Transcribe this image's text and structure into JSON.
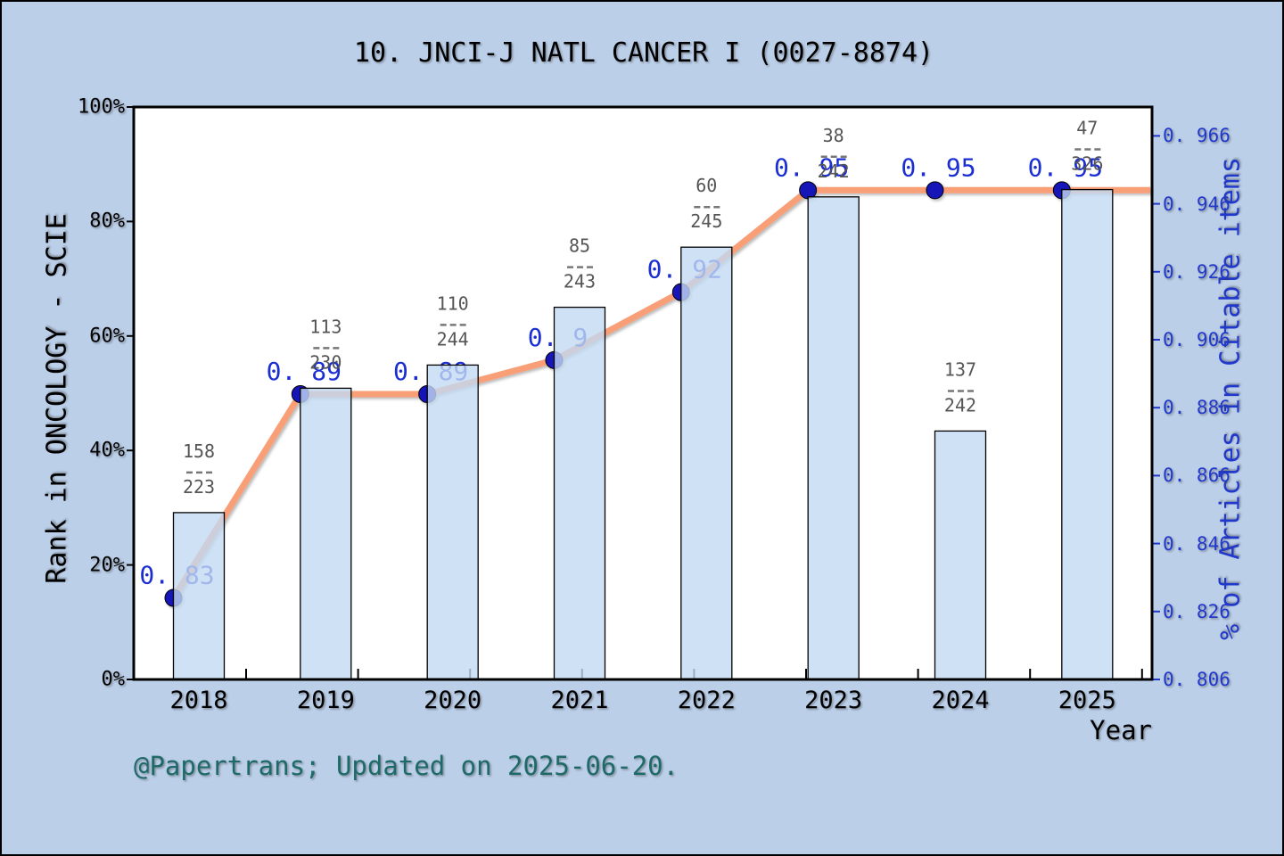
{
  "title": "10. JNCI-J NATL CANCER I (0027-8874)",
  "footer": "@Papertrans; Updated on 2025-06-20.",
  "window": {
    "background": "#bbcfe9",
    "plot_background": "#ffffff",
    "border_color": "#000000"
  },
  "axes": {
    "left": {
      "label": "Rank in ONCOLOGY - SCIE",
      "tick_labels": [
        "100%",
        "80%",
        "60%",
        "40%",
        "20%",
        "0%"
      ],
      "tick_values": [
        100,
        80,
        60,
        40,
        20,
        0
      ],
      "color": "#000000"
    },
    "right": {
      "label": "% of Articles in Citable items",
      "tick_labels": [
        "0. 966",
        "0. 946",
        "0. 926",
        "0. 906",
        "0. 886",
        "0. 866",
        "0. 846",
        "0. 826",
        "0. 806"
      ],
      "tick_values": [
        0.966,
        0.946,
        0.926,
        0.906,
        0.886,
        0.866,
        0.846,
        0.826,
        0.806
      ],
      "color": "#2138cc"
    },
    "x": {
      "label": "Year",
      "tick_labels": [
        "2018",
        "2019",
        "2020",
        "2021",
        "2022",
        "2023",
        "2024",
        "2025"
      ]
    }
  },
  "chart_data": {
    "type": "bar+line",
    "x": [
      2018,
      2019,
      2020,
      2021,
      2022,
      2023,
      2024,
      2025
    ],
    "left_ylim": [
      0,
      100
    ],
    "right_ylim": [
      0.806,
      0.9745
    ],
    "grid": false,
    "legend": "none",
    "series": [
      {
        "name": "Rank in ONCOLOGY - SCIE",
        "type": "bar",
        "axis": "left",
        "fractions": [
          {
            "numerator": 158,
            "denominator": 223
          },
          {
            "numerator": 113,
            "denominator": 230
          },
          {
            "numerator": 110,
            "denominator": 244
          },
          {
            "numerator": 85,
            "denominator": 243
          },
          {
            "numerator": 60,
            "denominator": 245
          },
          {
            "numerator": 38,
            "denominator": 242
          },
          {
            "numerator": 137,
            "denominator": 242
          },
          {
            "numerator": 47,
            "denominator": 326
          }
        ],
        "percentile_values": [
          29.1,
          50.9,
          54.9,
          65.0,
          75.5,
          84.3,
          43.4,
          85.6
        ]
      },
      {
        "name": "% of Articles in Citable items",
        "type": "line",
        "axis": "right",
        "values": [
          0.83,
          0.89,
          0.89,
          0.9,
          0.92,
          0.95,
          0.95,
          0.95
        ],
        "point_labels": [
          "0. 83",
          "0. 89",
          "0. 89",
          "0. 9",
          "0. 92",
          "0. 95",
          "0. 95",
          "0. 95"
        ]
      }
    ],
    "colors": {
      "bar_fill": "#cfe1f5",
      "bar_fill_rgba": "rgba(195,218,243,0.8)",
      "bar_edge": "#000000",
      "line": "#f99f78",
      "dot": "#1414b8",
      "value_label": "#1b2ed1",
      "fraction_text": "#555555",
      "fraction_dash": "#777777"
    }
  }
}
